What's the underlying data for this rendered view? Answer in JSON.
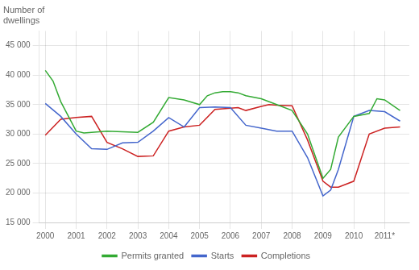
{
  "chart_data": {
    "type": "line",
    "ylabel": "Number of\ndwellings",
    "xlim": [
      1999.8,
      2011.8
    ],
    "xticks": [
      2000,
      2001,
      2002,
      2003,
      2004,
      2005,
      2006,
      2007,
      2008,
      2009,
      2010,
      {
        "value": 2011,
        "label": "2011*"
      }
    ],
    "ylim": [
      15000,
      47500
    ],
    "yticks": [
      {
        "value": 15000,
        "label": "15 000"
      },
      {
        "value": 20000,
        "label": "20 000"
      },
      {
        "value": 25000,
        "label": "25 000"
      },
      {
        "value": 30000,
        "label": "30 000"
      },
      {
        "value": 35000,
        "label": "35 000"
      },
      {
        "value": 40000,
        "label": "40 000"
      },
      {
        "value": 45000,
        "label": "45 000"
      }
    ],
    "grid": true,
    "legend": "bottom",
    "series": [
      {
        "name": "Permits granted",
        "color": "#33aa33",
        "x": [
          2000.0,
          2000.25,
          2000.5,
          2001.0,
          2001.25,
          2001.5,
          2002.0,
          2002.5,
          2003.0,
          2003.5,
          2004.0,
          2004.5,
          2005.0,
          2005.25,
          2005.5,
          2005.75,
          2006.0,
          2006.25,
          2006.5,
          2007.0,
          2007.5,
          2008.0,
          2008.5,
          2009.0,
          2009.25,
          2009.5,
          2010.0,
          2010.5,
          2010.75,
          2011.0,
          2011.5
        ],
        "values": [
          40800,
          39000,
          35500,
          30500,
          30200,
          30300,
          30500,
          30400,
          30300,
          32000,
          36200,
          35800,
          35000,
          36500,
          37000,
          37200,
          37200,
          37000,
          36500,
          36000,
          35000,
          34000,
          30000,
          22500,
          24000,
          29500,
          33000,
          33500,
          36000,
          35800,
          34000
        ]
      },
      {
        "name": "Starts",
        "color": "#4466cc",
        "x": [
          2000.0,
          2000.5,
          2001.0,
          2001.5,
          2002.0,
          2002.5,
          2003.0,
          2003.5,
          2004.0,
          2004.5,
          2005.0,
          2005.5,
          2006.0,
          2006.5,
          2007.0,
          2007.5,
          2008.0,
          2008.5,
          2009.0,
          2009.25,
          2009.5,
          2010.0,
          2010.5,
          2011.0,
          2011.5
        ],
        "values": [
          35200,
          33000,
          30000,
          27500,
          27400,
          28500,
          28600,
          30500,
          32800,
          31200,
          34500,
          34600,
          34500,
          31500,
          31000,
          30500,
          30500,
          26000,
          19500,
          20500,
          24000,
          33000,
          34000,
          33800,
          32200
        ]
      },
      {
        "name": "Completions",
        "color": "#cc2222",
        "x": [
          2000.0,
          2000.5,
          2001.0,
          2001.5,
          2002.0,
          2002.5,
          2003.0,
          2003.5,
          2004.0,
          2004.5,
          2005.0,
          2005.5,
          2006.0,
          2006.25,
          2006.5,
          2007.0,
          2007.25,
          2007.5,
          2008.0,
          2008.5,
          2009.0,
          2009.25,
          2009.5,
          2010.0,
          2010.5,
          2011.0,
          2011.5
        ],
        "values": [
          29800,
          32500,
          32800,
          33000,
          28600,
          27500,
          26200,
          26300,
          30500,
          31200,
          31500,
          34200,
          34400,
          34500,
          34000,
          34700,
          35000,
          34900,
          34800,
          29000,
          22000,
          21000,
          21000,
          22000,
          30000,
          31000,
          31200
        ]
      }
    ]
  }
}
